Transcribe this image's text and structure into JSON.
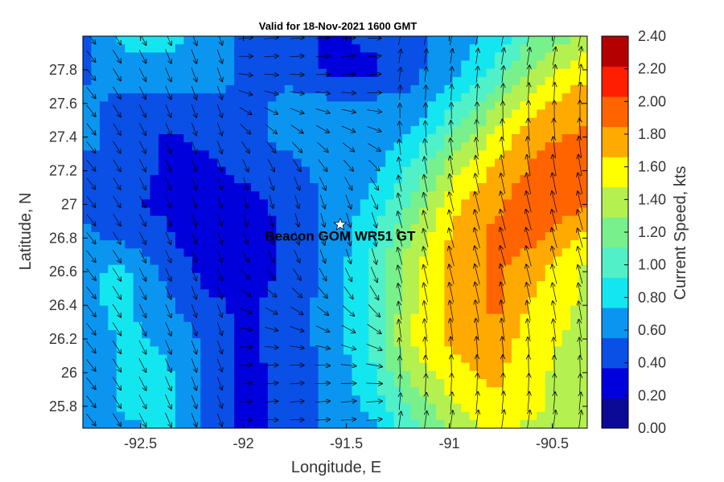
{
  "chart_data": {
    "type": "filled-contour",
    "title": "Valid for 18-Nov-2021 1600 GMT",
    "xlabel": "Longitude, E",
    "ylabel": "Latitude, N",
    "xlim": [
      -92.78,
      -90.33
    ],
    "ylim": [
      25.67,
      28.0
    ],
    "x_ticks": [
      -92.5,
      -92,
      -91.5,
      -91,
      -90.5
    ],
    "x_tick_labels": [
      "-92.5",
      "-92",
      "-91.5",
      "-91",
      "-90.5"
    ],
    "y_ticks": [
      25.8,
      26,
      26.2,
      26.4,
      26.6,
      26.8,
      27,
      27.2,
      27.4,
      27.6,
      27.8
    ],
    "y_tick_labels": [
      "25.8",
      "26",
      "26.2",
      "26.4",
      "26.6",
      "26.8",
      "27",
      "27.2",
      "27.4",
      "27.6",
      "27.8"
    ],
    "colorbar": {
      "label": "Current Speed, kts",
      "levels": [
        0.0,
        0.2,
        0.4,
        0.6,
        0.8,
        1.0,
        1.2,
        1.4,
        1.6,
        1.8,
        2.0,
        2.2,
        2.4
      ],
      "tick_labels": [
        "0.00",
        "0.20",
        "0.40",
        "0.60",
        "0.80",
        "1.00",
        "1.20",
        "1.40",
        "1.60",
        "1.80",
        "2.00",
        "2.20",
        "2.40"
      ],
      "colors": [
        "#0a0a96",
        "#0000dc",
        "#0a50e6",
        "#0a96f0",
        "#14e6f0",
        "#50f0c8",
        "#78f08c",
        "#b4f050",
        "#ffff00",
        "#ffaa00",
        "#ff6400",
        "#ff1e00",
        "#b40000"
      ]
    },
    "marker": {
      "label": "Beacon GOM WR51 GT",
      "lon": -91.53,
      "lat": 26.88,
      "symbol": "white-star"
    },
    "speed_field": {
      "lons": [
        -92.78,
        -92.58,
        -92.38,
        -92.18,
        -91.98,
        -91.78,
        -91.58,
        -91.38,
        -91.18,
        -90.98,
        -90.78,
        -90.58,
        -90.33
      ],
      "lats": [
        28.0,
        27.8,
        27.6,
        27.4,
        27.2,
        27.0,
        26.8,
        26.6,
        26.4,
        26.2,
        26.0,
        25.8,
        25.67
      ],
      "speed": [
        [
          0.55,
          0.85,
          0.85,
          0.75,
          0.55,
          0.55,
          0.35,
          0.45,
          0.55,
          0.65,
          0.85,
          1.25,
          1.45
        ],
        [
          0.55,
          0.75,
          0.75,
          0.75,
          0.55,
          0.55,
          0.35,
          0.35,
          0.55,
          0.75,
          1.05,
          1.45,
          1.75
        ],
        [
          0.65,
          0.55,
          0.55,
          0.55,
          0.55,
          0.65,
          0.65,
          0.65,
          0.65,
          0.95,
          1.35,
          1.75,
          1.95
        ],
        [
          0.65,
          0.55,
          0.35,
          0.45,
          0.55,
          0.65,
          0.65,
          0.65,
          0.85,
          1.25,
          1.65,
          1.95,
          2.05
        ],
        [
          0.55,
          0.55,
          0.35,
          0.35,
          0.45,
          0.55,
          0.65,
          0.75,
          1.05,
          1.55,
          1.85,
          2.05,
          2.15
        ],
        [
          0.55,
          0.45,
          0.35,
          0.25,
          0.35,
          0.45,
          0.65,
          0.85,
          1.25,
          1.75,
          1.95,
          2.15,
          2.05
        ],
        [
          0.65,
          0.55,
          0.45,
          0.25,
          0.25,
          0.45,
          0.65,
          0.95,
          1.45,
          1.85,
          2.05,
          2.05,
          1.75
        ],
        [
          0.75,
          0.85,
          0.55,
          0.35,
          0.25,
          0.45,
          0.65,
          1.05,
          1.55,
          1.85,
          2.05,
          1.85,
          1.55
        ],
        [
          0.75,
          0.85,
          0.65,
          0.45,
          0.35,
          0.55,
          0.65,
          1.05,
          1.55,
          1.85,
          2.05,
          1.75,
          1.55
        ],
        [
          0.65,
          0.85,
          0.75,
          0.55,
          0.35,
          0.55,
          0.65,
          1.05,
          1.65,
          1.85,
          1.95,
          1.65,
          1.55
        ],
        [
          0.65,
          0.85,
          0.85,
          0.55,
          0.35,
          0.45,
          0.65,
          0.95,
          1.45,
          1.75,
          1.85,
          1.65,
          1.45
        ],
        [
          0.65,
          0.85,
          0.85,
          0.55,
          0.35,
          0.45,
          0.65,
          0.85,
          1.25,
          1.55,
          1.75,
          1.65,
          1.45
        ],
        [
          0.65,
          0.75,
          0.85,
          0.55,
          0.35,
          0.45,
          0.65,
          0.75,
          1.15,
          1.45,
          1.65,
          1.55,
          1.45
        ]
      ]
    },
    "vectors": "current direction arrows over grid (mostly northward on east side, southward/eastward on west side)"
  }
}
